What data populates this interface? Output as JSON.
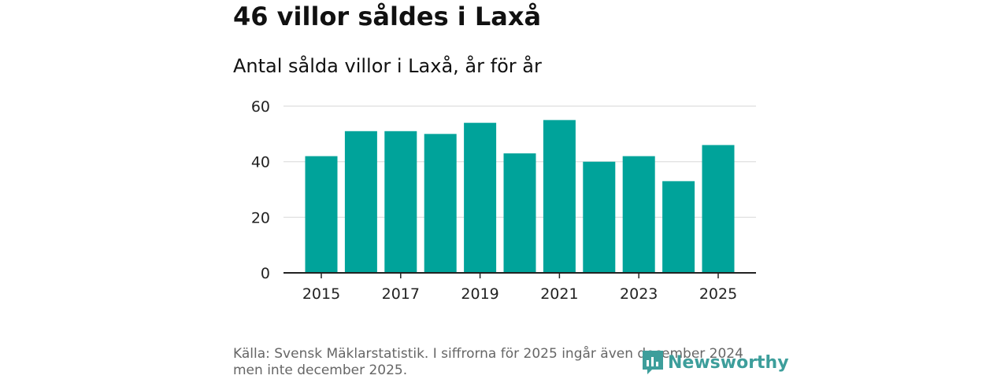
{
  "title": "46 villor såldes i Laxå",
  "subtitle": "Antal sålda villor i Laxå, år för år",
  "footer": {
    "line1": "Källa: Svensk Mäklarstatistik. I siffrorna för 2025 ingår även december 2024",
    "line2": "men inte december 2025."
  },
  "logo": {
    "text": "Newsworthy",
    "icon": "newsworthy-logo-icon"
  },
  "colors": {
    "bar": "#00a39a",
    "grid": "#dddddd",
    "axis": "#222222"
  },
  "chart_data": {
    "type": "bar",
    "title": "Antal sålda villor i Laxå, år för år",
    "xlabel": "",
    "ylabel": "",
    "categories": [
      "2015",
      "2016",
      "2017",
      "2018",
      "2019",
      "2020",
      "2021",
      "2022",
      "2023",
      "2024",
      "2025"
    ],
    "values": [
      42,
      51,
      51,
      50,
      54,
      43,
      55,
      40,
      42,
      33,
      46
    ],
    "ylim": [
      0,
      60
    ],
    "yticks": [
      0,
      20,
      40,
      60
    ],
    "xticks": [
      "2015",
      "2017",
      "2019",
      "2021",
      "2023",
      "2025"
    ],
    "grid": true
  }
}
